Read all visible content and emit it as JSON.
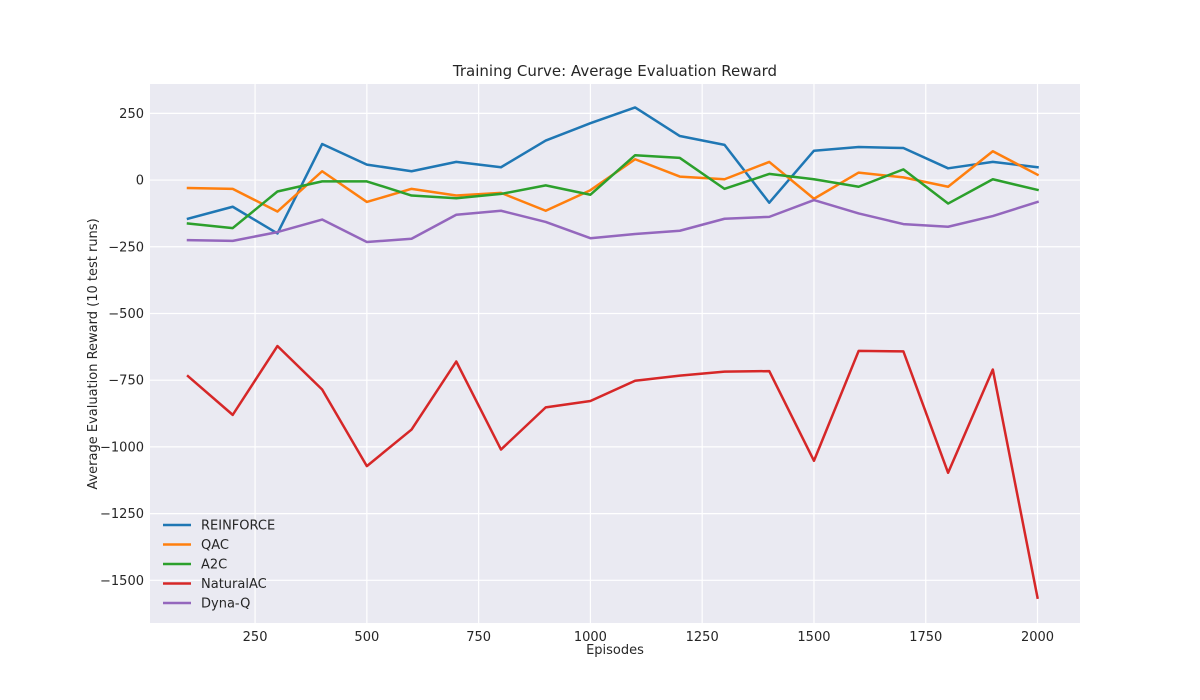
{
  "chart_data": {
    "type": "line",
    "title": "Training Curve: Average Evaluation Reward",
    "xlabel": "Episodes",
    "ylabel": "Average Evaluation Reward (10 test runs)",
    "xlim": [
      15,
      2095
    ],
    "ylim": [
      -1660,
      360
    ],
    "xticks": [
      250,
      500,
      750,
      1000,
      1250,
      1500,
      1750,
      2000
    ],
    "xtick_labels": [
      "250",
      "500",
      "750",
      "1000",
      "1250",
      "1500",
      "1750",
      "2000"
    ],
    "yticks": [
      250,
      0,
      -250,
      -500,
      -750,
      -1000,
      -1250,
      -1500
    ],
    "ytick_labels": [
      "250",
      "0",
      "−250",
      "−500",
      "−750",
      "−1000",
      "−1250",
      "−1500"
    ],
    "grid": true,
    "legend_position": "lower-left",
    "x": [
      100,
      200,
      300,
      400,
      500,
      600,
      700,
      800,
      900,
      1000,
      1100,
      1200,
      1300,
      1400,
      1500,
      1600,
      1700,
      1800,
      1900,
      2000
    ],
    "series": [
      {
        "name": "REINFORCE",
        "color": "#1f77b4",
        "values": [
          -145,
          -100,
          -200,
          135,
          58,
          33,
          68,
          48,
          148,
          213,
          272,
          165,
          132,
          -85,
          110,
          124,
          120,
          44,
          68,
          48
        ]
      },
      {
        "name": "QAC",
        "color": "#ff7f0e",
        "values": [
          -30,
          -33,
          -118,
          33,
          -82,
          -33,
          -58,
          -48,
          -115,
          -38,
          78,
          13,
          3,
          68,
          -70,
          28,
          10,
          -25,
          108,
          20
        ]
      },
      {
        "name": "A2C",
        "color": "#2ca02c",
        "values": [
          -163,
          -180,
          -43,
          -5,
          -5,
          -58,
          -68,
          -52,
          -20,
          -55,
          93,
          83,
          -33,
          23,
          3,
          -25,
          40,
          -88,
          3,
          -37
        ]
      },
      {
        "name": "NaturalAC",
        "color": "#d62728",
        "values": [
          -735,
          -880,
          -622,
          -785,
          -1072,
          -935,
          -680,
          -1010,
          -852,
          -828,
          -752,
          -733,
          -718,
          -716,
          -1052,
          -640,
          -642,
          -1097,
          -710,
          -1565
        ]
      },
      {
        "name": "Dyna-Q",
        "color": "#9467bd",
        "values": [
          -225,
          -228,
          -195,
          -148,
          -232,
          -220,
          -130,
          -115,
          -157,
          -218,
          -202,
          -190,
          -145,
          -138,
          -75,
          -125,
          -165,
          -175,
          -135,
          -82
        ]
      }
    ]
  }
}
